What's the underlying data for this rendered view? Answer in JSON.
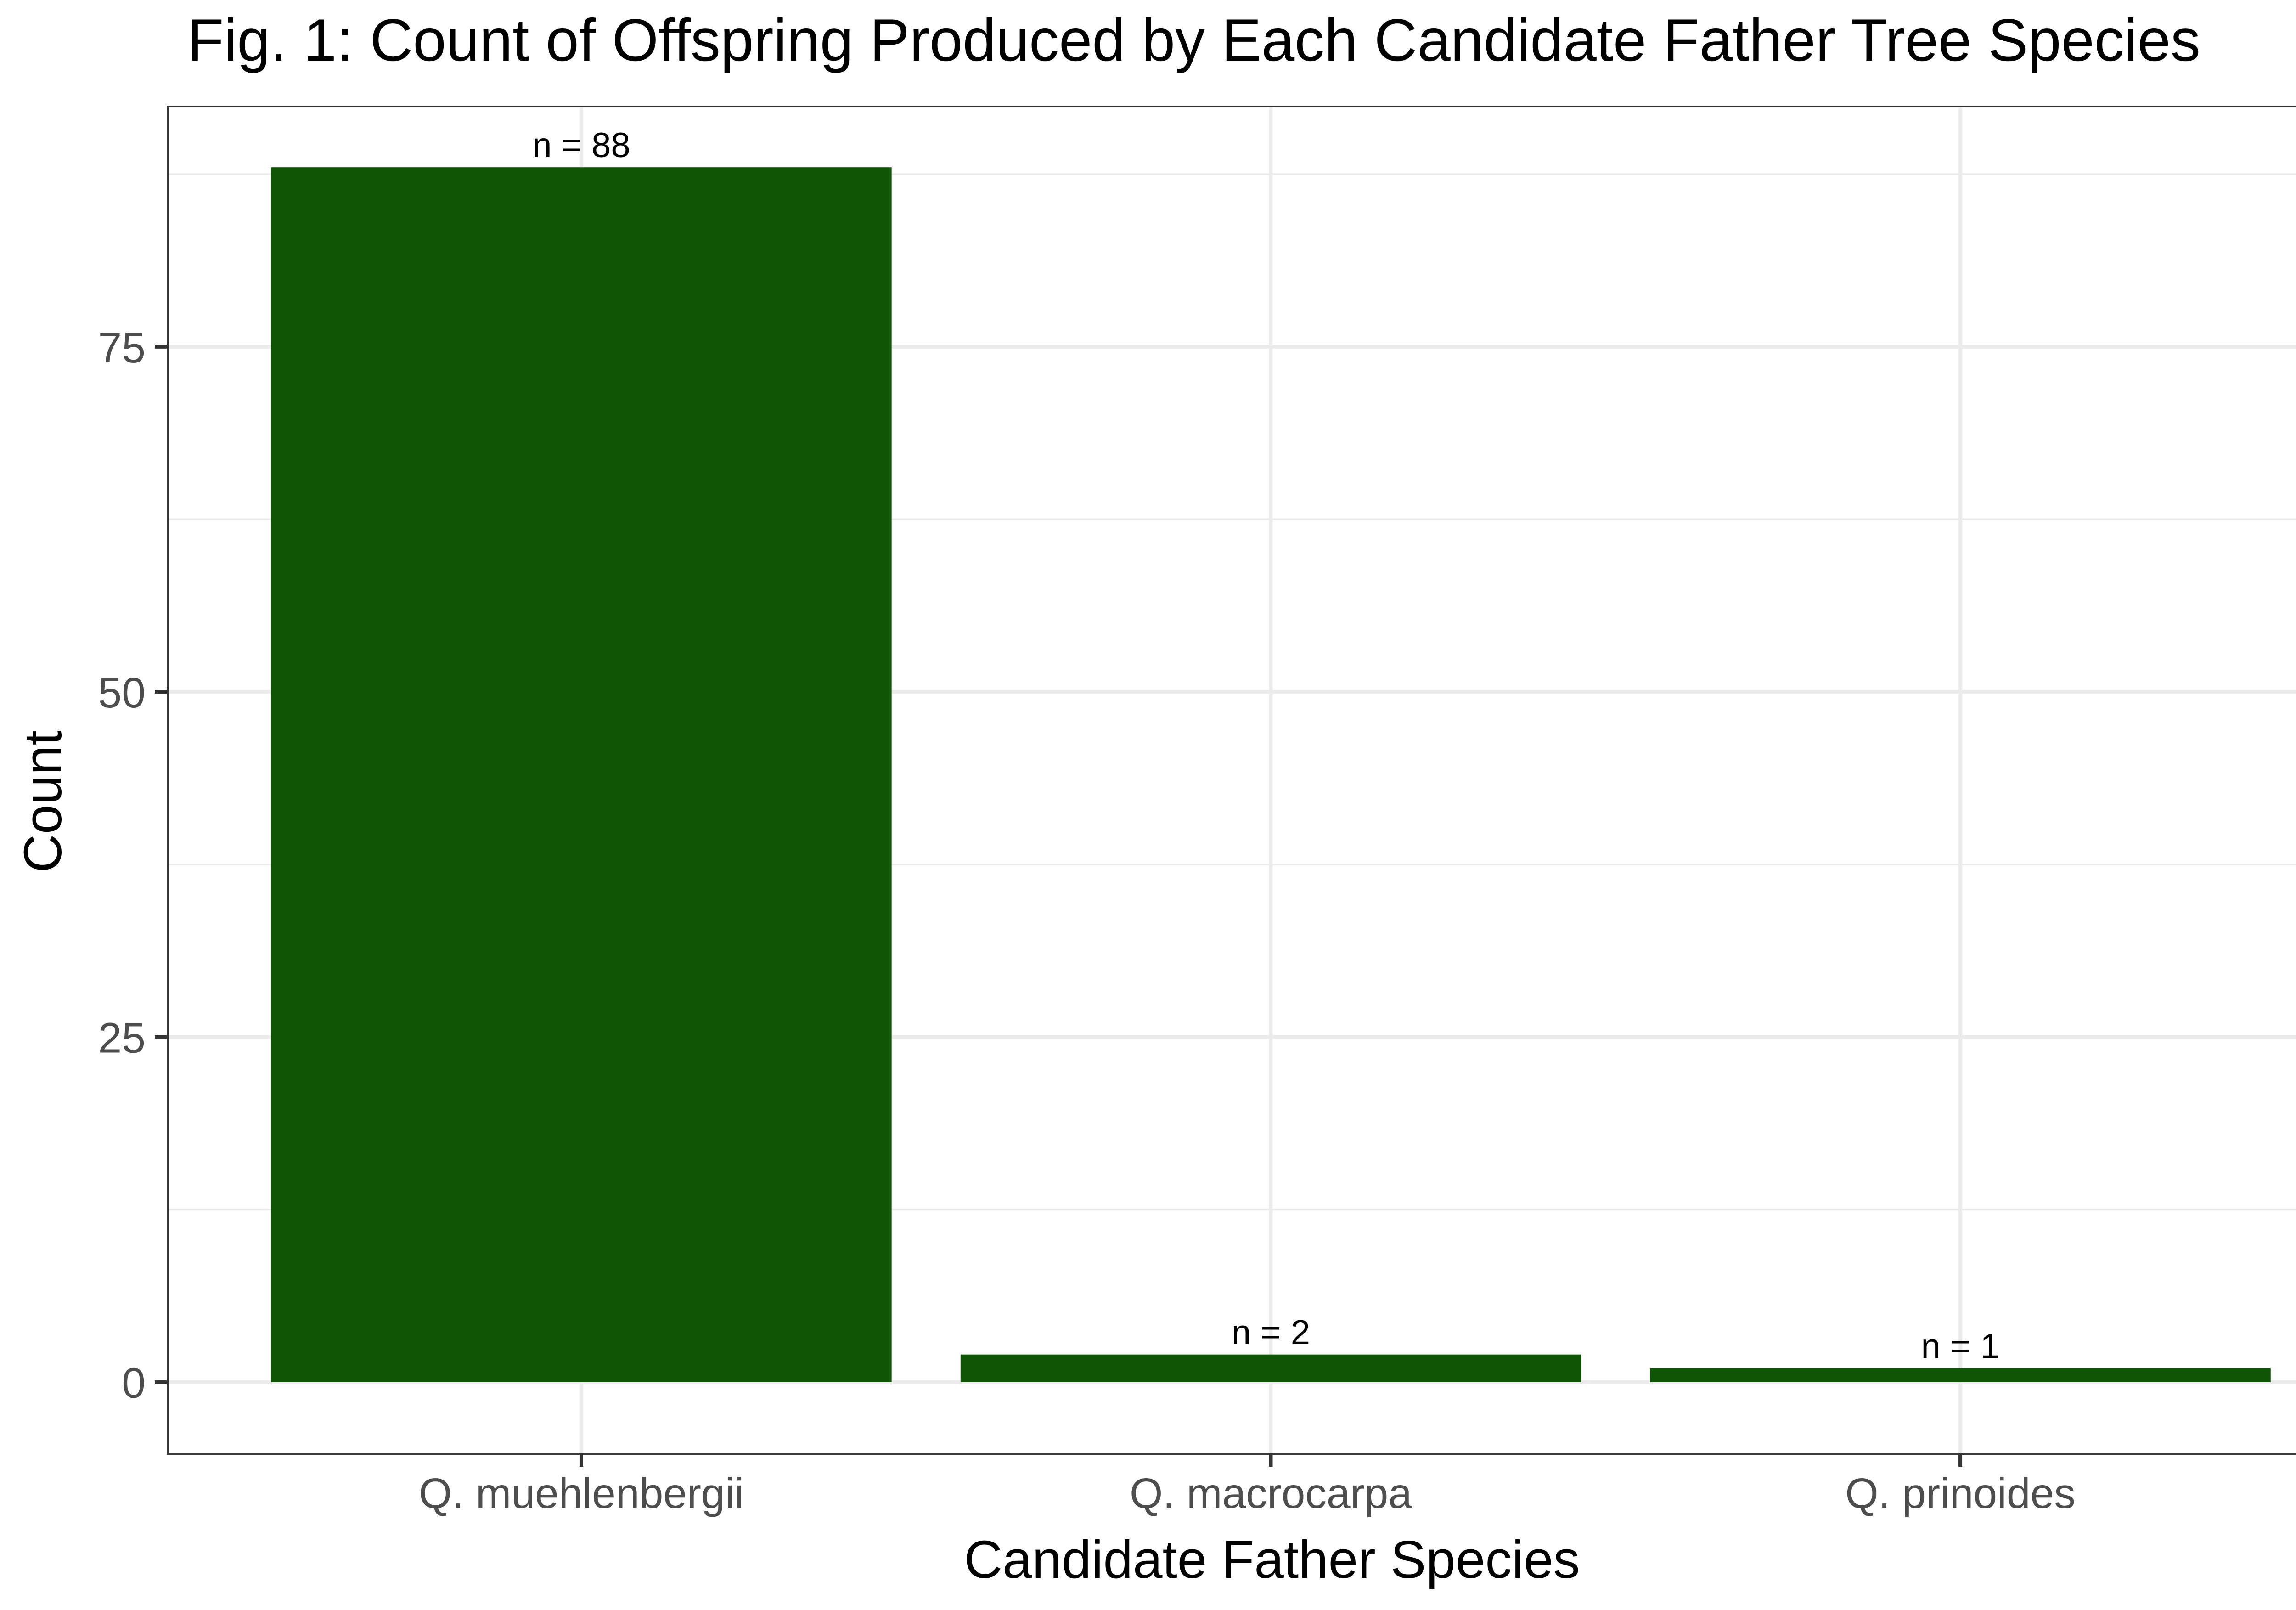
{
  "chart_data": {
    "type": "bar",
    "title": "Fig. 1: Count of Offspring Produced by Each Candidate Father Tree Species",
    "xlabel": "Candidate Father Species",
    "ylabel": "Count",
    "categories": [
      "Q. muehlenbergii",
      "Q. macrocarpa",
      "Q. prinoides"
    ],
    "values": [
      88,
      2,
      1
    ],
    "data_labels": [
      "n = 88",
      "n = 2",
      "n = 1"
    ],
    "ylim": [
      -5.2,
      92.4
    ],
    "yticks": [
      0,
      25,
      50,
      75
    ],
    "ytick_labels": [
      "0",
      "25",
      "50",
      "75"
    ],
    "grid": true,
    "legend": "none",
    "colors": {
      "bar": "#0d5404",
      "grid": "#ebebeb",
      "panel_border": "#333333",
      "tick_label": "#4d4d4d",
      "text": "#000000"
    }
  }
}
